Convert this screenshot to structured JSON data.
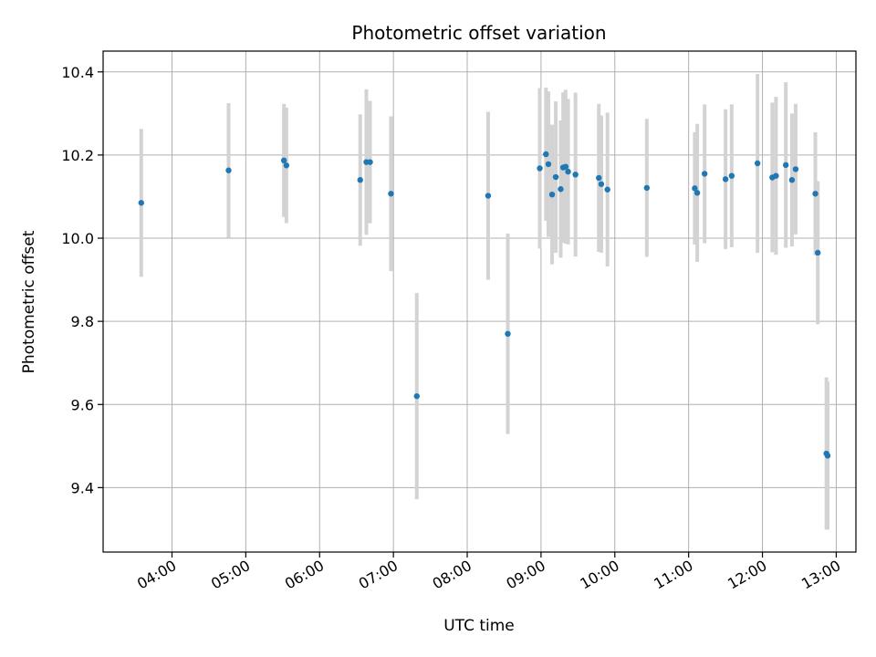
{
  "chart_data": {
    "type": "scatter",
    "title": "Photometric offset variation",
    "xlabel": "UTC time",
    "ylabel": "Photometric offset",
    "x_tick_labels": [
      "04:00",
      "05:00",
      "06:00",
      "07:00",
      "08:00",
      "09:00",
      "10:00",
      "11:00",
      "12:00",
      "13:00"
    ],
    "y_tick_labels": [
      "9.4",
      "9.6",
      "9.8",
      "10.0",
      "10.2",
      "10.4"
    ],
    "x_ticks": [
      "04:00",
      "05:00",
      "06:00",
      "07:00",
      "08:00",
      "09:00",
      "10:00",
      "11:00",
      "12:00",
      "13:00"
    ],
    "y_ticks": [
      9.4,
      9.6,
      9.8,
      10.0,
      10.2,
      10.4
    ],
    "xlim": [
      "03:04",
      "13:16"
    ],
    "ylim": [
      9.245,
      10.45
    ],
    "grid": true,
    "colors": {
      "point": "#1f77b4",
      "errorbar": "#d3d3d3",
      "grid": "#b0b0b0"
    },
    "points": [
      {
        "x": "03:35",
        "y": 10.085,
        "err": 0.178
      },
      {
        "x": "04:46",
        "y": 10.163,
        "err": 0.162
      },
      {
        "x": "05:31",
        "y": 10.187,
        "err": 0.136
      },
      {
        "x": "05:33",
        "y": 10.175,
        "err": 0.139
      },
      {
        "x": "06:33",
        "y": 10.14,
        "err": 0.158
      },
      {
        "x": "06:38",
        "y": 10.183,
        "err": 0.175
      },
      {
        "x": "06:41",
        "y": 10.183,
        "err": 0.147
      },
      {
        "x": "06:58",
        "y": 10.107,
        "err": 0.186
      },
      {
        "x": "07:19",
        "y": 9.62,
        "err": 0.248
      },
      {
        "x": "08:17",
        "y": 10.102,
        "err": 0.202
      },
      {
        "x": "08:33",
        "y": 9.77,
        "err": 0.241
      },
      {
        "x": "08:59",
        "y": 10.168,
        "err": 0.193
      },
      {
        "x": "09:04",
        "y": 10.202,
        "err": 0.16
      },
      {
        "x": "09:06",
        "y": 10.178,
        "err": 0.175
      },
      {
        "x": "09:09",
        "y": 10.105,
        "err": 0.168
      },
      {
        "x": "09:12",
        "y": 10.147,
        "err": 0.182
      },
      {
        "x": "09:16",
        "y": 10.118,
        "err": 0.165
      },
      {
        "x": "09:18",
        "y": 10.17,
        "err": 0.181
      },
      {
        "x": "09:20",
        "y": 10.172,
        "err": 0.185
      },
      {
        "x": "09:22",
        "y": 10.16,
        "err": 0.175
      },
      {
        "x": "09:28",
        "y": 10.153,
        "err": 0.197
      },
      {
        "x": "09:47",
        "y": 10.145,
        "err": 0.178
      },
      {
        "x": "09:49",
        "y": 10.13,
        "err": 0.165
      },
      {
        "x": "09:54",
        "y": 10.117,
        "err": 0.185
      },
      {
        "x": "10:26",
        "y": 10.121,
        "err": 0.166
      },
      {
        "x": "11:05",
        "y": 10.12,
        "err": 0.135
      },
      {
        "x": "11:07",
        "y": 10.109,
        "err": 0.166
      },
      {
        "x": "11:13",
        "y": 10.155,
        "err": 0.167
      },
      {
        "x": "11:30",
        "y": 10.142,
        "err": 0.168
      },
      {
        "x": "11:35",
        "y": 10.15,
        "err": 0.172
      },
      {
        "x": "11:56",
        "y": 10.18,
        "err": 0.215
      },
      {
        "x": "12:08",
        "y": 10.146,
        "err": 0.18
      },
      {
        "x": "12:11",
        "y": 10.15,
        "err": 0.19
      },
      {
        "x": "12:19",
        "y": 10.176,
        "err": 0.199
      },
      {
        "x": "12:24",
        "y": 10.14,
        "err": 0.16
      },
      {
        "x": "12:27",
        "y": 10.166,
        "err": 0.157
      },
      {
        "x": "12:43",
        "y": 10.107,
        "err": 0.148
      },
      {
        "x": "12:45",
        "y": 9.965,
        "err": 0.172
      },
      {
        "x": "12:52",
        "y": 9.482,
        "err": 0.183
      },
      {
        "x": "12:53",
        "y": 9.477,
        "err": 0.178
      }
    ]
  }
}
